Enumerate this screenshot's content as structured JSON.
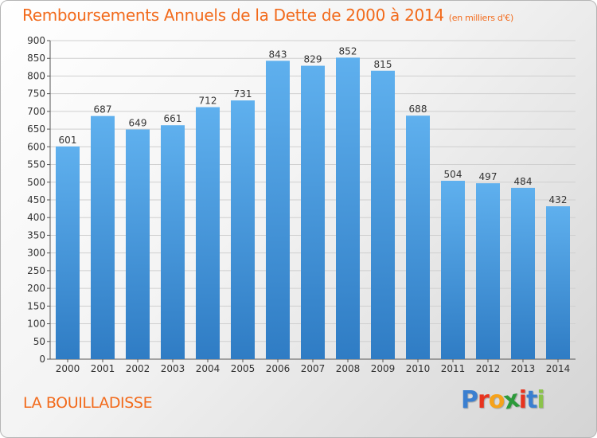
{
  "header": {
    "title": "Remboursements Annuels de la Dette de 2000 à 2014",
    "unit": "(en milliers d'€)"
  },
  "footer": {
    "commune": "LA BOUILLADISSE",
    "logo_letters": [
      "P",
      "r",
      "o",
      "x",
      "i",
      "t",
      "i"
    ],
    "logo_colors": [
      "#3a7fd0",
      "#e8331e",
      "#f6a21a",
      "#2c9a3a",
      "#e8331e",
      "#3a7fd0",
      "#8bc34a"
    ]
  },
  "chart_data": {
    "type": "bar",
    "title": "Remboursements Annuels de la Dette de 2000 à 2014",
    "subtitle": "(en milliers d'€)",
    "categories": [
      "2000",
      "2001",
      "2002",
      "2003",
      "2004",
      "2005",
      "2006",
      "2007",
      "2008",
      "2009",
      "2010",
      "2011",
      "2012",
      "2013",
      "2014"
    ],
    "values": [
      601,
      687,
      649,
      661,
      712,
      731,
      843,
      829,
      852,
      815,
      688,
      504,
      497,
      484,
      432
    ],
    "data_labels": [
      "601",
      "687",
      "649",
      "661",
      "712",
      "731",
      "843",
      "829",
      "852",
      "815",
      "688",
      "504",
      "497",
      "484",
      "432"
    ],
    "ylim": [
      0,
      900
    ],
    "yticks": [
      0,
      50,
      100,
      150,
      200,
      250,
      300,
      350,
      400,
      450,
      500,
      550,
      600,
      650,
      700,
      750,
      800,
      850,
      900
    ],
    "grid": true,
    "legend": "none",
    "bar_color_top": "#5fb0ee",
    "bar_color_bottom": "#2f7cc4"
  }
}
